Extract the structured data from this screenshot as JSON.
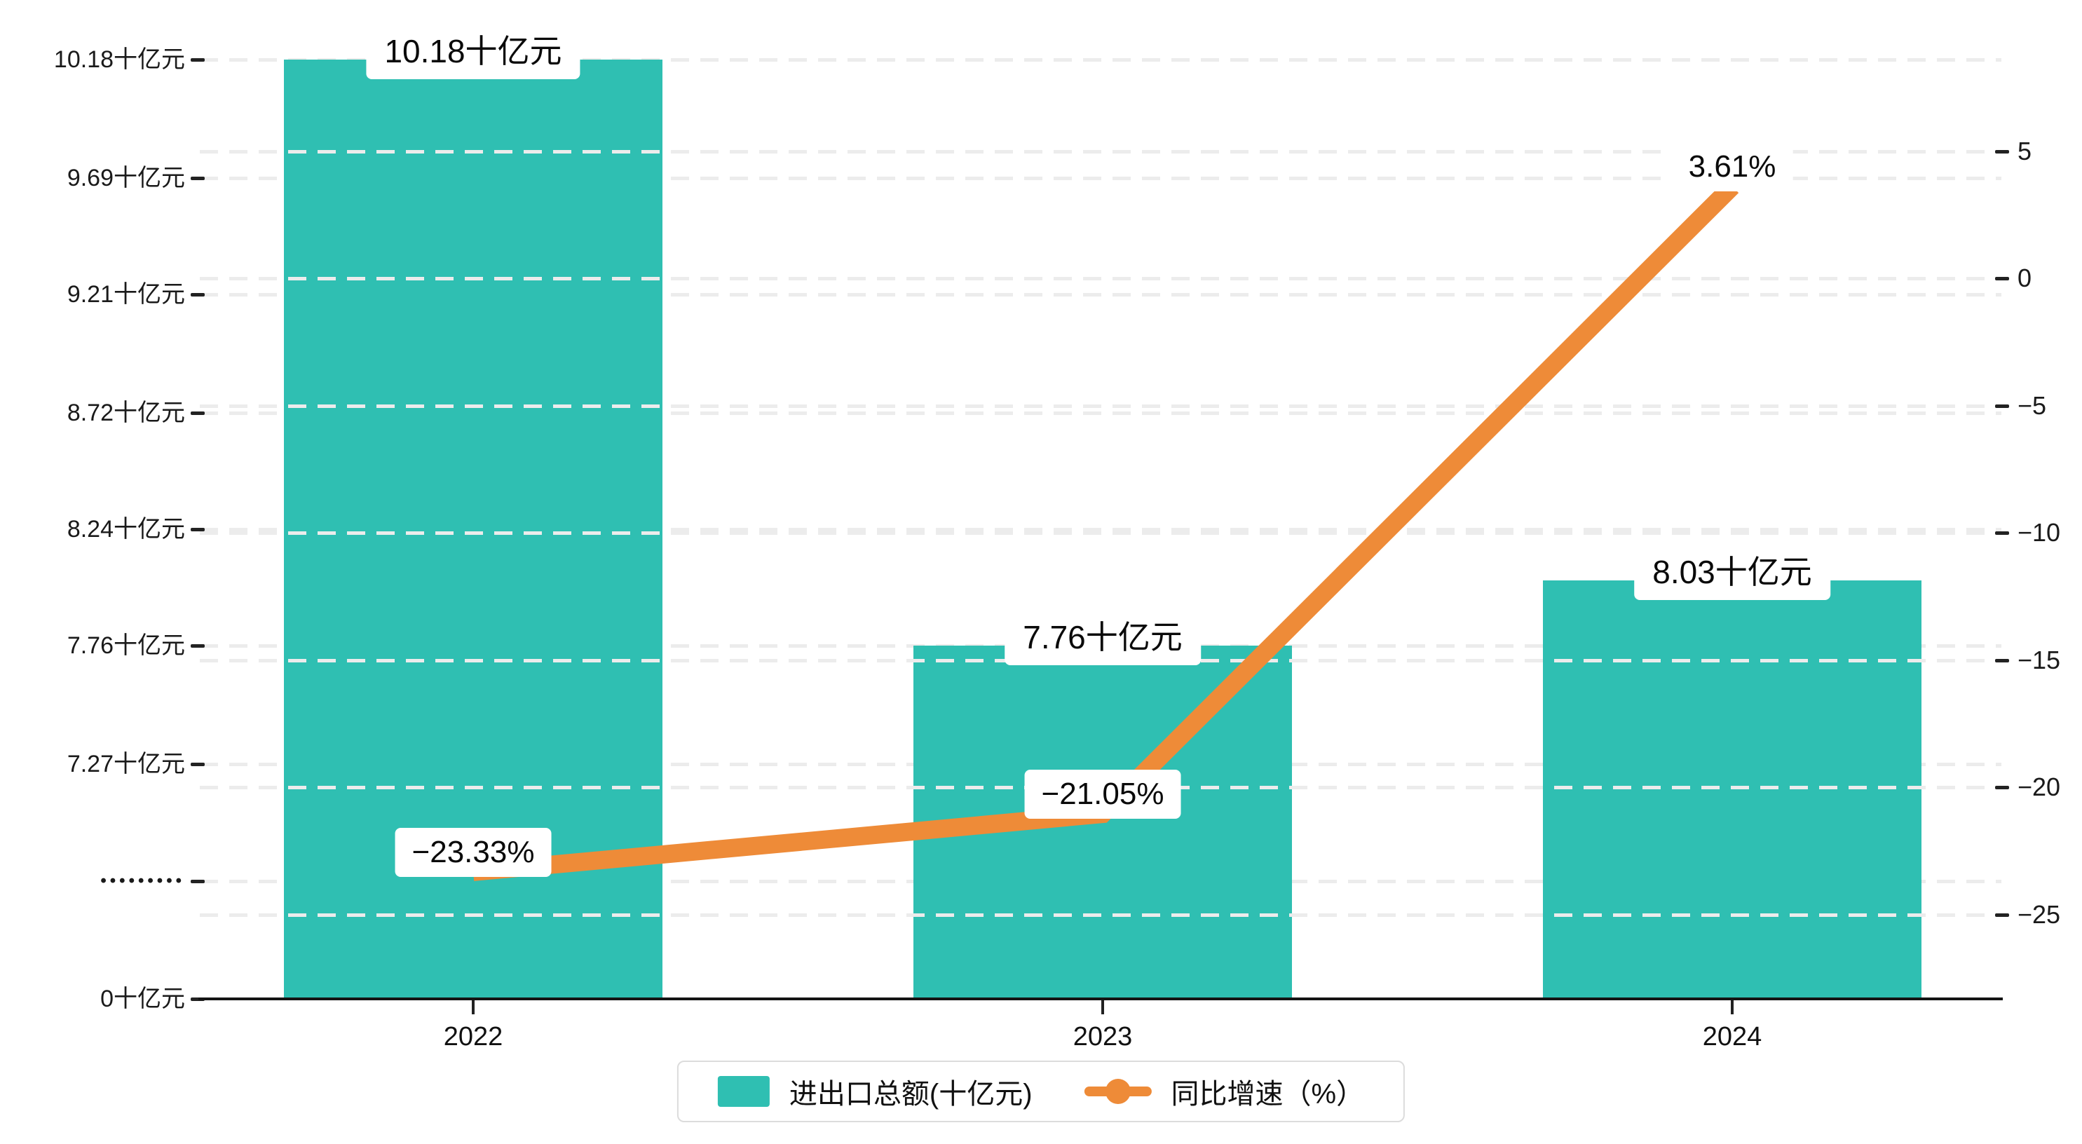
{
  "chart_data": {
    "type": "combo",
    "categories": [
      "2022",
      "2023",
      "2024"
    ],
    "series": [
      {
        "name": "进出口总额(十亿元)",
        "type": "bar",
        "unit": "十亿元",
        "values": [
          10.18,
          7.76,
          8.03
        ],
        "labels": [
          "10.18十亿元",
          "7.76十亿元",
          "8.03十亿元"
        ],
        "color": "#2FBFB2",
        "axis": "left"
      },
      {
        "name": "同比增速（%）",
        "type": "line",
        "unit": "%",
        "values": [
          -23.33,
          -21.05,
          3.61
        ],
        "labels": [
          "−23.33%",
          "−21.05%",
          "3.61%"
        ],
        "color": "#EE8B38",
        "axis": "right"
      }
    ],
    "left_axis": {
      "tick_labels": [
        "10.18十亿元",
        "9.69十亿元",
        "9.21十亿元",
        "8.72十亿元",
        "8.24十亿元",
        "7.76十亿元",
        "7.27十亿元",
        "•••••••••",
        "0十亿元"
      ],
      "tick_values": [
        10.18,
        9.69,
        9.21,
        8.72,
        8.24,
        7.76,
        7.27,
        null,
        0
      ],
      "broken_axis": true
    },
    "right_axis": {
      "tick_labels": [
        "5",
        "0",
        "−5",
        "−10",
        "−15",
        "−20",
        "−25"
      ],
      "tick_values": [
        5,
        0,
        -5,
        -10,
        -15,
        -20,
        -25
      ]
    },
    "grid": true,
    "legend_position": "bottom"
  },
  "legend": {
    "items": [
      {
        "label": "进出口总额(十亿元)",
        "color": "#2FBFB2",
        "marker": "square"
      },
      {
        "label": "同比增速（%）",
        "color": "#EE8B38",
        "marker": "line-dot"
      }
    ]
  },
  "colors": {
    "bar": "#2FBFB2",
    "line": "#EE8B38",
    "grid": "#ECECEC",
    "axis": "#141414",
    "text": "#111111"
  }
}
